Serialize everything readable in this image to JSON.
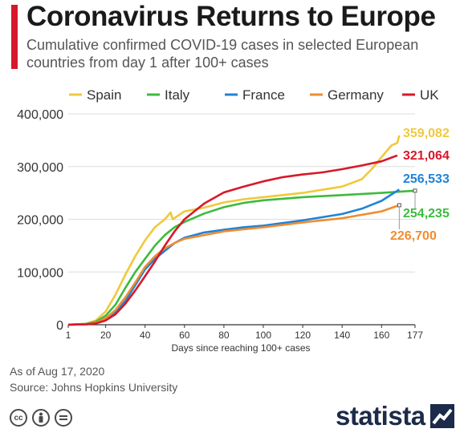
{
  "header": {
    "title": "Coronavirus Returns to Europe",
    "subtitle": "Cumulative confirmed COVID-19 cases in selected European countries from day 1 after 100+ cases"
  },
  "footer": {
    "date_note": "As of Aug 17, 2020",
    "source": "Source: Johns Hopkins University",
    "license_icons": [
      "cc-icon",
      "attribution-icon",
      "no-derivatives-icon"
    ],
    "brand": "statista"
  },
  "colors": {
    "accent": "#d7182a",
    "Spain": "#f0c93a",
    "Italy": "#3dbb3d",
    "France": "#1f83d8",
    "Germany": "#f08c30",
    "UK": "#d7182a"
  },
  "chart_data": {
    "type": "line",
    "title": "",
    "xlabel": "Days since reaching 100+ cases",
    "ylabel": "",
    "xlim": [
      1,
      177
    ],
    "ylim": [
      0,
      400000
    ],
    "x_ticks": [
      "1",
      "20",
      "40",
      "60",
      "80",
      "100",
      "120",
      "140",
      "160",
      "177"
    ],
    "y_ticks": [
      "0",
      "100,000",
      "200,000",
      "300,000",
      "400,000"
    ],
    "grid": true,
    "legend_position": "top",
    "series": [
      {
        "name": "Spain",
        "end_label": "359,082",
        "points": [
          [
            1,
            100
          ],
          [
            10,
            1700
          ],
          [
            15,
            8000
          ],
          [
            20,
            25000
          ],
          [
            25,
            57000
          ],
          [
            30,
            95000
          ],
          [
            35,
            130000
          ],
          [
            40,
            160000
          ],
          [
            45,
            185000
          ],
          [
            50,
            200000
          ],
          [
            53,
            213000
          ],
          [
            54,
            200000
          ],
          [
            60,
            215000
          ],
          [
            70,
            222000
          ],
          [
            80,
            232000
          ],
          [
            90,
            238000
          ],
          [
            100,
            242000
          ],
          [
            120,
            250000
          ],
          [
            140,
            262000
          ],
          [
            150,
            276000
          ],
          [
            155,
            295000
          ],
          [
            160,
            318000
          ],
          [
            165,
            340000
          ],
          [
            168,
            345000
          ],
          [
            169,
            359082
          ]
        ]
      },
      {
        "name": "Italy",
        "end_label": "254,235",
        "points": [
          [
            1,
            100
          ],
          [
            10,
            1600
          ],
          [
            15,
            6000
          ],
          [
            20,
            17000
          ],
          [
            25,
            38000
          ],
          [
            30,
            70000
          ],
          [
            35,
            100000
          ],
          [
            40,
            125000
          ],
          [
            45,
            150000
          ],
          [
            50,
            170000
          ],
          [
            55,
            185000
          ],
          [
            60,
            195000
          ],
          [
            70,
            211000
          ],
          [
            80,
            223000
          ],
          [
            90,
            231000
          ],
          [
            100,
            236000
          ],
          [
            120,
            242000
          ],
          [
            140,
            246000
          ],
          [
            160,
            250000
          ],
          [
            177,
            254235
          ]
        ]
      },
      {
        "name": "France",
        "end_label": "256,533",
        "points": [
          [
            1,
            100
          ],
          [
            10,
            700
          ],
          [
            15,
            3000
          ],
          [
            20,
            11000
          ],
          [
            25,
            25000
          ],
          [
            30,
            45000
          ],
          [
            35,
            75000
          ],
          [
            40,
            105000
          ],
          [
            45,
            125000
          ],
          [
            50,
            140000
          ],
          [
            55,
            155000
          ],
          [
            60,
            165000
          ],
          [
            70,
            175000
          ],
          [
            80,
            180000
          ],
          [
            90,
            185000
          ],
          [
            100,
            188000
          ],
          [
            120,
            198000
          ],
          [
            140,
            210000
          ],
          [
            150,
            220000
          ],
          [
            160,
            235000
          ],
          [
            165,
            247000
          ],
          [
            169,
            256533
          ]
        ]
      },
      {
        "name": "Germany",
        "end_label": "226,700",
        "points": [
          [
            1,
            100
          ],
          [
            10,
            1000
          ],
          [
            15,
            4000
          ],
          [
            20,
            12000
          ],
          [
            25,
            28000
          ],
          [
            30,
            52000
          ],
          [
            35,
            80000
          ],
          [
            40,
            110000
          ],
          [
            45,
            130000
          ],
          [
            50,
            145000
          ],
          [
            55,
            155000
          ],
          [
            60,
            163000
          ],
          [
            70,
            170000
          ],
          [
            80,
            177000
          ],
          [
            90,
            181000
          ],
          [
            100,
            185000
          ],
          [
            120,
            194000
          ],
          [
            140,
            202000
          ],
          [
            160,
            215000
          ],
          [
            169,
            226700
          ]
        ]
      },
      {
        "name": "UK",
        "end_label": "321,064",
        "points": [
          [
            1,
            100
          ],
          [
            10,
            700
          ],
          [
            15,
            2500
          ],
          [
            20,
            8000
          ],
          [
            25,
            20000
          ],
          [
            30,
            40000
          ],
          [
            35,
            65000
          ],
          [
            40,
            92000
          ],
          [
            45,
            120000
          ],
          [
            50,
            150000
          ],
          [
            55,
            177000
          ],
          [
            60,
            200000
          ],
          [
            65,
            215000
          ],
          [
            70,
            230000
          ],
          [
            80,
            251000
          ],
          [
            90,
            262000
          ],
          [
            100,
            272000
          ],
          [
            110,
            280000
          ],
          [
            120,
            285000
          ],
          [
            130,
            289000
          ],
          [
            140,
            295000
          ],
          [
            150,
            302000
          ],
          [
            160,
            310000
          ],
          [
            168,
            321064
          ]
        ]
      }
    ]
  }
}
